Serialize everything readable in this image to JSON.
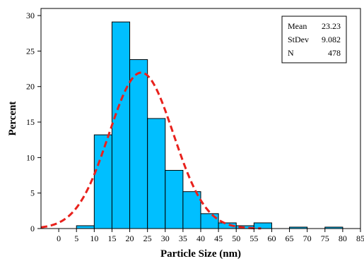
{
  "chart_data": {
    "type": "bar",
    "subtype": "histogram-with-normal-fit",
    "title": "",
    "xlabel": "Particle Size (nm)",
    "ylabel": "Percent",
    "xlim": [
      -5,
      85
    ],
    "ylim": [
      0,
      31
    ],
    "x_ticks": [
      "0",
      "5",
      "10",
      "15",
      "20",
      "25",
      "30",
      "35",
      "40",
      "45",
      "50",
      "55",
      "60",
      "65",
      "70",
      "75",
      "80",
      "85"
    ],
    "x_tick_values": [
      0,
      5,
      10,
      15,
      20,
      25,
      30,
      35,
      40,
      45,
      50,
      55,
      60,
      65,
      70,
      75,
      80,
      85
    ],
    "y_ticks": [
      "0",
      "5",
      "10",
      "15",
      "20",
      "25",
      "30"
    ],
    "y_tick_values": [
      0,
      5,
      10,
      15,
      20,
      25,
      30
    ],
    "bins": [
      {
        "start": 5,
        "end": 10,
        "value": 0.4
      },
      {
        "start": 10,
        "end": 15,
        "value": 13.2
      },
      {
        "start": 15,
        "end": 20,
        "value": 29.1
      },
      {
        "start": 20,
        "end": 25,
        "value": 23.8
      },
      {
        "start": 25,
        "end": 30,
        "value": 15.5
      },
      {
        "start": 30,
        "end": 35,
        "value": 8.2
      },
      {
        "start": 35,
        "end": 40,
        "value": 5.2
      },
      {
        "start": 40,
        "end": 45,
        "value": 2.1
      },
      {
        "start": 45,
        "end": 50,
        "value": 0.8
      },
      {
        "start": 50,
        "end": 55,
        "value": 0.4
      },
      {
        "start": 55,
        "end": 60,
        "value": 0.8
      },
      {
        "start": 65,
        "end": 70,
        "value": 0.2
      },
      {
        "start": 75,
        "end": 80,
        "value": 0.2
      }
    ],
    "normal_fit": {
      "mean": 23.23,
      "stdev": 9.082
    },
    "stats": [
      {
        "label": "Mean",
        "value": "23.23"
      },
      {
        "label": "StDev",
        "value": "9.082"
      },
      {
        "label": "N",
        "value": "478"
      }
    ],
    "stats_box_placement": "top-right",
    "grid": false,
    "colors": {
      "bar_fill": "#00bfff",
      "bar_stroke": "#000000",
      "fit_line": "#e8211c"
    }
  }
}
